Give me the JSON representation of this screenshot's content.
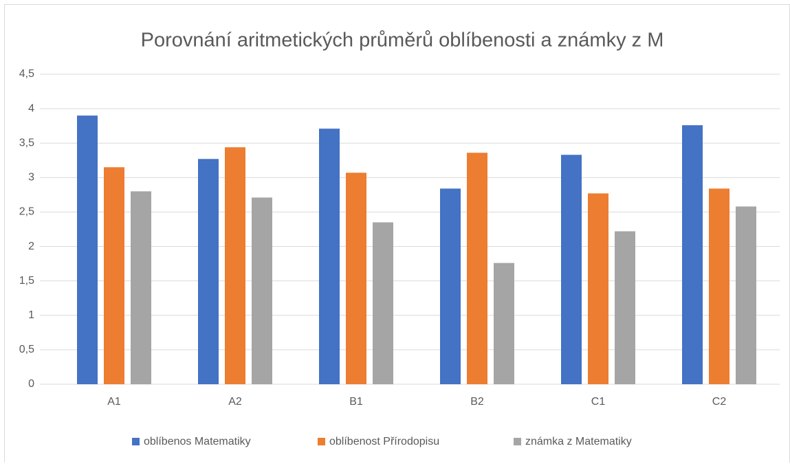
{
  "chart_data": {
    "type": "bar",
    "title": "Porovnání aritmetických průměrů oblíbenosti a známky z M",
    "categories": [
      "A1",
      "A2",
      "B1",
      "B2",
      "C1",
      "C2"
    ],
    "series": [
      {
        "name": "oblíbenos Matematiky",
        "color": "#4472c4",
        "values": [
          3.9,
          3.27,
          3.71,
          2.84,
          3.33,
          3.76
        ]
      },
      {
        "name": "oblíbenost Přírodopisu",
        "color": "#ed7d31",
        "values": [
          3.15,
          3.44,
          3.07,
          3.36,
          2.77,
          2.84
        ]
      },
      {
        "name": "známka z Matematiky",
        "color": "#a5a5a5",
        "values": [
          2.8,
          2.71,
          2.35,
          1.76,
          2.22,
          2.58
        ]
      }
    ],
    "ylim": [
      0,
      4.5
    ],
    "yticks": [
      0,
      {
        "value": 0.5,
        "label": "0,5"
      },
      1,
      {
        "value": 1.5,
        "label": "1,5"
      },
      2,
      {
        "value": 2.5,
        "label": "2,5"
      },
      3,
      {
        "value": 3.5,
        "label": "3,5"
      },
      4,
      {
        "value": 4.5,
        "label": "4,5"
      }
    ],
    "grid": true,
    "legend": "bottom"
  }
}
